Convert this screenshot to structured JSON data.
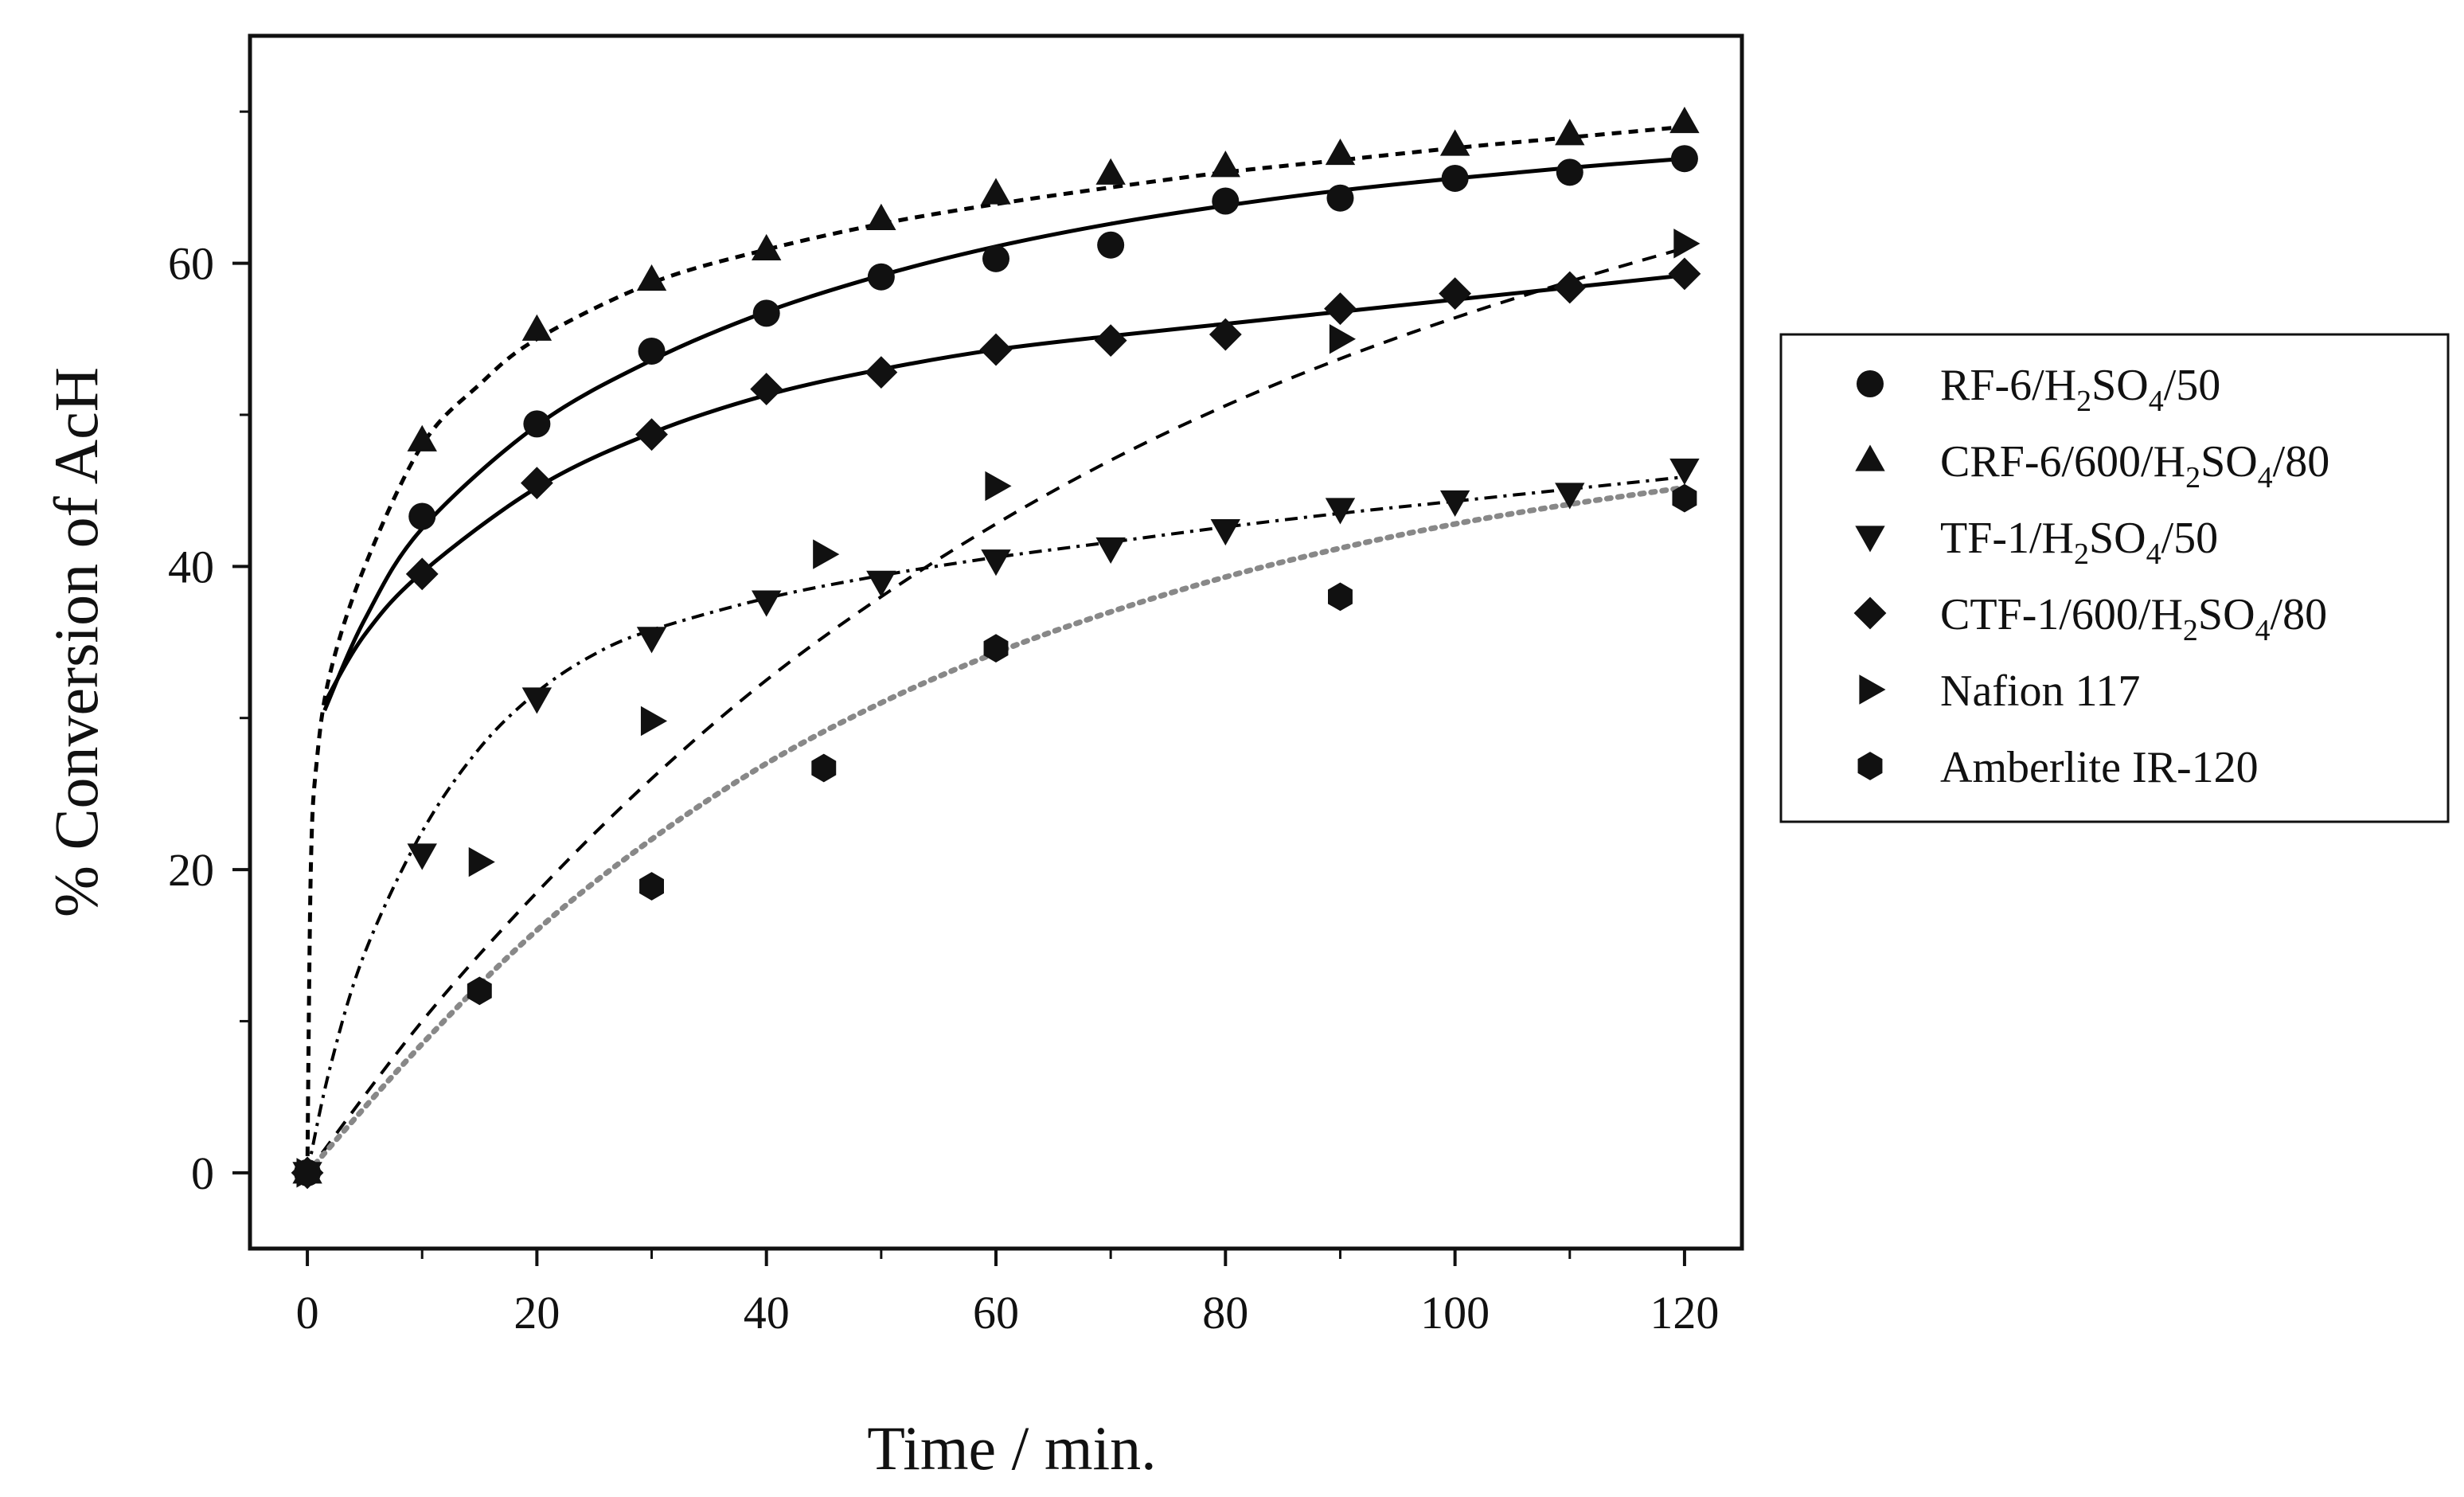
{
  "chart_data": {
    "type": "scatter",
    "title": "",
    "xlabel": "Time / min.",
    "ylabel": "% Conversion of AcH",
    "xlim": [
      -5,
      125
    ],
    "ylim": [
      -5,
      75
    ],
    "xticks": [
      0,
      20,
      40,
      60,
      80,
      100,
      120
    ],
    "yticks": [
      0,
      20,
      40,
      60
    ],
    "xtick_labels": [
      "0",
      "20",
      "40",
      "60",
      "80",
      "100",
      "120"
    ],
    "ytick_labels": [
      "0",
      "20",
      "40",
      "60"
    ],
    "grid": false,
    "legend_position": "right",
    "series": [
      {
        "name": "RF-6/H2SO4/50",
        "label_parts": [
          [
            "RF-6/H",
            ""
          ],
          [
            "2",
            "sub"
          ],
          [
            "SO",
            ""
          ],
          [
            "4",
            "sub"
          ],
          [
            "/50",
            ""
          ]
        ],
        "marker": "circle",
        "line": "solid",
        "line_color": "#000000",
        "x": [
          0,
          10,
          20,
          30,
          40,
          50,
          60,
          70,
          80,
          90,
          100,
          110,
          120
        ],
        "y": [
          0,
          43.3,
          49.4,
          54.2,
          56.7,
          59.1,
          60.3,
          61.2,
          64.1,
          64.3,
          65.6,
          66.0,
          66.9
        ],
        "fit": [
          [
            1.5,
            30.5
          ],
          [
            5,
            36.5
          ],
          [
            10,
            42.5
          ],
          [
            20,
            49.3
          ],
          [
            30,
            53.6
          ],
          [
            40,
            56.8
          ],
          [
            50,
            59.2
          ],
          [
            60,
            61.1
          ],
          [
            70,
            62.6
          ],
          [
            80,
            63.8
          ],
          [
            90,
            64.8
          ],
          [
            100,
            65.6
          ],
          [
            110,
            66.3
          ],
          [
            120,
            66.9
          ]
        ]
      },
      {
        "name": "CRF-6/600/H2SO4/80",
        "label_parts": [
          [
            "CRF-6/600/H",
            ""
          ],
          [
            "2",
            "sub"
          ],
          [
            "SO",
            ""
          ],
          [
            "4",
            "sub"
          ],
          [
            "/80",
            ""
          ]
        ],
        "marker": "triangle-up",
        "line": "dashed-short",
        "line_color": "#000000",
        "x": [
          0,
          10,
          20,
          30,
          40,
          50,
          60,
          70,
          80,
          90,
          100,
          110,
          120
        ],
        "y": [
          0,
          48.3,
          55.6,
          58.9,
          60.9,
          62.9,
          64.6,
          65.9,
          66.4,
          67.2,
          67.8,
          68.5,
          69.3
        ],
        "fit": [
          [
            0,
            0
          ],
          [
            0.3,
            20
          ],
          [
            0.8,
            27
          ],
          [
            2,
            33
          ],
          [
            5,
            40
          ],
          [
            10,
            48
          ],
          [
            15,
            52
          ],
          [
            20,
            55
          ],
          [
            30,
            58.7
          ],
          [
            40,
            60.9
          ],
          [
            50,
            62.6
          ],
          [
            60,
            63.9
          ],
          [
            70,
            65.0
          ],
          [
            80,
            66.0
          ],
          [
            90,
            66.8
          ],
          [
            100,
            67.6
          ],
          [
            110,
            68.3
          ],
          [
            120,
            69.0
          ]
        ]
      },
      {
        "name": "TF-1/H2SO4/50",
        "label_parts": [
          [
            "TF-1/H",
            ""
          ],
          [
            "2",
            "sub"
          ],
          [
            "SO",
            ""
          ],
          [
            "4",
            "sub"
          ],
          [
            "/50",
            ""
          ]
        ],
        "marker": "triangle-down",
        "line": "dash-dot",
        "line_color": "#000000",
        "x": [
          0,
          10,
          20,
          30,
          40,
          50,
          60,
          70,
          80,
          90,
          100,
          110,
          120
        ],
        "y": [
          0,
          21.0,
          31.3,
          35.3,
          37.7,
          39.0,
          40.4,
          41.2,
          42.4,
          43.8,
          44.3,
          44.8,
          46.4
        ],
        "fit": [
          [
            0,
            0
          ],
          [
            2,
            7
          ],
          [
            5,
            14.5
          ],
          [
            10,
            22.5
          ],
          [
            15,
            28
          ],
          [
            20,
            31.7
          ],
          [
            25,
            34.2
          ],
          [
            30,
            35.8
          ],
          [
            40,
            37.9
          ],
          [
            50,
            39.4
          ],
          [
            60,
            40.6
          ],
          [
            70,
            41.6
          ],
          [
            80,
            42.6
          ],
          [
            90,
            43.5
          ],
          [
            100,
            44.3
          ],
          [
            110,
            45.1
          ],
          [
            120,
            45.9
          ]
        ]
      },
      {
        "name": "CTF-1/600/H2SO4/80",
        "label_parts": [
          [
            "CTF-1/600/H",
            ""
          ],
          [
            "2",
            "sub"
          ],
          [
            "SO",
            ""
          ],
          [
            "4",
            "sub"
          ],
          [
            "/80",
            ""
          ]
        ],
        "marker": "diamond",
        "line": "solid",
        "line_color": "#000000",
        "x": [
          0,
          10,
          20,
          30,
          40,
          50,
          60,
          70,
          80,
          90,
          100,
          110,
          120
        ],
        "y": [
          0,
          39.5,
          45.5,
          48.7,
          51.7,
          52.8,
          54.3,
          54.9,
          55.3,
          57.0,
          58.0,
          58.4,
          59.3
        ],
        "fit": [
          [
            1.5,
            31
          ],
          [
            5,
            35.5
          ],
          [
            10,
            39.6
          ],
          [
            20,
            45.2
          ],
          [
            30,
            48.8
          ],
          [
            40,
            51.3
          ],
          [
            50,
            53.0
          ],
          [
            60,
            54.3
          ],
          [
            70,
            55.2
          ],
          [
            80,
            56.0
          ],
          [
            90,
            56.8
          ],
          [
            100,
            57.6
          ],
          [
            110,
            58.4
          ],
          [
            120,
            59.2
          ]
        ]
      },
      {
        "name": "Nafion 117",
        "label_parts": [
          [
            "Nafion 117",
            ""
          ]
        ],
        "marker": "triangle-right",
        "line": "dashed",
        "line_color": "#000000",
        "x": [
          0,
          15,
          30,
          45,
          60,
          90,
          120
        ],
        "y": [
          0,
          20.5,
          29.8,
          40.8,
          45.3,
          55.0,
          61.3
        ],
        "fit": [
          [
            0,
            0
          ],
          [
            10,
            10
          ],
          [
            20,
            18.5
          ],
          [
            30,
            26
          ],
          [
            40,
            32.5
          ],
          [
            50,
            38
          ],
          [
            60,
            42.8
          ],
          [
            70,
            47
          ],
          [
            80,
            50.6
          ],
          [
            90,
            53.7
          ],
          [
            100,
            56.4
          ],
          [
            110,
            58.8
          ],
          [
            120,
            61.0
          ]
        ]
      },
      {
        "name": "Amberlite IR-120",
        "label_parts": [
          [
            "Amberlite IR-120",
            ""
          ]
        ],
        "marker": "hexagon",
        "line": "dotted",
        "line_color": "#888888",
        "x": [
          0,
          15,
          30,
          45,
          60,
          90,
          120
        ],
        "y": [
          0,
          12.0,
          18.9,
          26.7,
          34.6,
          38.0,
          44.5
        ],
        "fit": [
          [
            0,
            0
          ],
          [
            10,
            8.5
          ],
          [
            20,
            16
          ],
          [
            30,
            22
          ],
          [
            40,
            27
          ],
          [
            50,
            31
          ],
          [
            60,
            34.3
          ],
          [
            70,
            37
          ],
          [
            80,
            39.3
          ],
          [
            90,
            41.2
          ],
          [
            100,
            42.8
          ],
          [
            110,
            44.1
          ],
          [
            120,
            45.2
          ]
        ]
      }
    ]
  }
}
